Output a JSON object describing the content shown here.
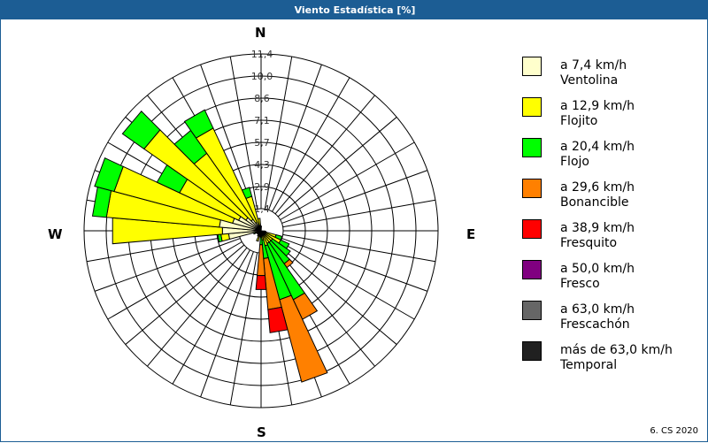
{
  "window": {
    "title": "Viento Estadística [%]",
    "footer": "6. CS 2020"
  },
  "compass": {
    "n": "N",
    "e": "E",
    "s": "S",
    "w": "W"
  },
  "legend": [
    {
      "range": "a 7,4 km/h",
      "name": "Ventolina",
      "color": "#ffffcc"
    },
    {
      "range": "a 12,9 km/h",
      "name": "Flojito",
      "color": "#ffff00"
    },
    {
      "range": "a 20,4 km/h",
      "name": "Flojo",
      "color": "#00ff00"
    },
    {
      "range": "a 29,6 km/h",
      "name": "Bonancible",
      "color": "#ff8000"
    },
    {
      "range": "a 38,9 km/h",
      "name": "Fresquito",
      "color": "#ff0000"
    },
    {
      "range": "a 50,0 km/h",
      "name": "Fresco",
      "color": "#800080"
    },
    {
      "range": "a 63,0 km/h",
      "name": "Frescachón",
      "color": "#666666"
    },
    {
      "range": "más de 63,0 km/h",
      "name": "Temporal",
      "color": "#202020"
    }
  ],
  "chart_data": {
    "type": "polar-stacked-bar",
    "title": "Viento Estadística [%]",
    "unit": "%",
    "radial_ticks": [
      "1,4",
      "2,9",
      "4,3",
      "5,7",
      "7,1",
      "8,6",
      "10,0",
      "11,4"
    ],
    "rmax": 11.4,
    "sector_width_deg": 10,
    "series_names": [
      "Ventolina",
      "Flojito",
      "Flojo",
      "Bonancible",
      "Fresquito",
      "Fresco",
      "Frescachón",
      "Temporal"
    ],
    "directions_deg": [
      100,
      110,
      120,
      130,
      140,
      150,
      160,
      170,
      180,
      190,
      200,
      210,
      220,
      230,
      240,
      250,
      260,
      270,
      280,
      290,
      300,
      310,
      320,
      330,
      340,
      350,
      0
    ],
    "cumulative": [
      [
        0.2,
        0.3,
        0.3,
        0.3,
        0.3,
        0.3,
        0.3,
        0.3
      ],
      [
        0.2,
        1.0,
        1.4,
        1.4,
        1.4,
        1.4,
        1.4,
        1.4
      ],
      [
        0.2,
        1.4,
        2.0,
        2.0,
        2.0,
        2.0,
        2.0,
        2.0
      ],
      [
        0.2,
        0.9,
        2.3,
        2.3,
        2.3,
        2.3,
        2.3,
        2.3
      ],
      [
        0.2,
        0.9,
        2.6,
        2.9,
        2.9,
        2.9,
        2.9,
        2.9
      ],
      [
        0.2,
        0.9,
        4.9,
        6.3,
        6.3,
        6.3,
        6.3,
        6.3
      ],
      [
        0.2,
        1.0,
        4.6,
        10.1,
        10.1,
        10.1,
        10.1,
        10.1
      ],
      [
        0.2,
        0.6,
        1.8,
        5.1,
        6.6,
        6.6,
        6.6,
        6.6
      ],
      [
        0.1,
        0.4,
        0.9,
        2.9,
        3.8,
        3.8,
        3.8,
        3.8
      ],
      [
        0.1,
        0.3,
        0.4,
        0.4,
        0.4,
        0.4,
        0.4,
        0.4
      ],
      [
        0.1,
        0.7,
        0.7,
        0.7,
        0.7,
        0.7,
        0.7,
        0.7
      ],
      [
        0.1,
        0.4,
        0.4,
        0.4,
        0.4,
        0.4,
        0.4,
        0.4
      ],
      [
        0.1,
        0.3,
        0.3,
        0.3,
        0.3,
        0.3,
        0.3,
        0.3
      ],
      [
        0.1,
        0.3,
        0.3,
        0.3,
        0.3,
        0.3,
        0.3,
        0.3
      ],
      [
        0.2,
        0.3,
        0.3,
        0.3,
        0.3,
        0.3,
        0.3,
        0.3
      ],
      [
        0.4,
        0.4,
        0.5,
        0.5,
        0.5,
        0.5,
        0.5,
        0.5
      ],
      [
        2.1,
        2.6,
        2.8,
        2.8,
        2.8,
        2.8,
        2.8,
        2.8
      ],
      [
        2.5,
        9.6,
        9.6,
        9.6,
        9.6,
        9.6,
        9.6,
        9.6
      ],
      [
        2.7,
        10.0,
        10.9,
        10.9,
        10.9,
        10.9,
        10.9,
        10.9
      ],
      [
        1.9,
        9.8,
        11.1,
        11.1,
        11.1,
        11.1,
        11.1,
        11.1
      ],
      [
        1.6,
        5.8,
        7.4,
        7.4,
        7.4,
        7.4,
        7.4,
        7.4
      ],
      [
        1.2,
        9.2,
        10.9,
        10.9,
        10.9,
        10.9,
        10.9,
        10.9
      ],
      [
        0.9,
        6.1,
        7.9,
        7.9,
        7.9,
        7.9,
        7.9,
        7.9
      ],
      [
        0.6,
        7.3,
        8.6,
        8.6,
        8.6,
        8.6,
        8.6,
        8.6
      ],
      [
        0.4,
        2.3,
        2.9,
        2.9,
        2.9,
        2.9,
        2.9,
        2.9
      ],
      [
        0.2,
        0.8,
        0.8,
        0.8,
        0.8,
        0.8,
        0.8,
        0.8
      ],
      [
        0.1,
        0.3,
        0.3,
        0.3,
        0.3,
        0.3,
        0.3,
        0.3
      ]
    ],
    "legend_position": "right",
    "grid": true
  }
}
